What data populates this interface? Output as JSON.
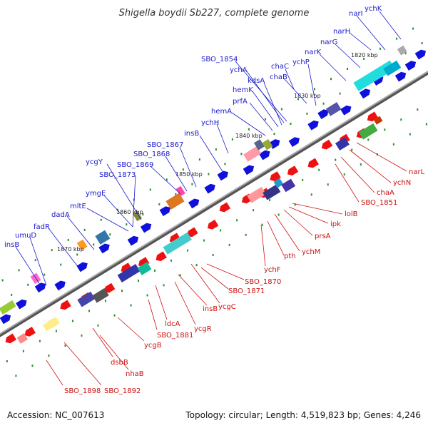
{
  "title": "Shigella boydii Sb227, complete genome",
  "footer": {
    "accession": "Accession: NC_007613",
    "summary": "Topology: circular; Length: 4,519,823 bp; Genes: 4,246"
  },
  "colors": {
    "forward_labels": "#1a1acc",
    "reverse_labels": "#cc1111",
    "backbone": "#888888",
    "tick": "#2e8b2e"
  },
  "kbp_ticks": [
    "1820 kbp",
    "1830 kbp",
    "1840 kbp",
    "1850 kbp",
    "1860 kbp",
    "1870 kbp"
  ],
  "forward_genes": [
    "narI",
    "ychK",
    "narH",
    "narG",
    "narK",
    "ychP",
    "chaC",
    "chaB",
    "SBO_1854",
    "ychA",
    "kdsA",
    "hemK",
    "prfA",
    "hemA",
    "ychH",
    "insB",
    "SBO_1867",
    "SBO_1868",
    "SBO_1869",
    "ycgY",
    "SBO_1873",
    "ymgE",
    "mltE",
    "dadA",
    "fadR",
    "umuD",
    "insB"
  ],
  "reverse_genes": [
    "narL",
    "ychN",
    "chaA",
    "SBO_1851",
    "lolB",
    "ipk",
    "prsA",
    "ychM",
    "pth",
    "ychF",
    "SBO_1870",
    "SBO_1871",
    "ycgC",
    "insB",
    "ycgR",
    "ldcA",
    "SBO_1881",
    "ycgB",
    "nhaB",
    "dsbB",
    "SBO_1892",
    "SBO_1898"
  ]
}
